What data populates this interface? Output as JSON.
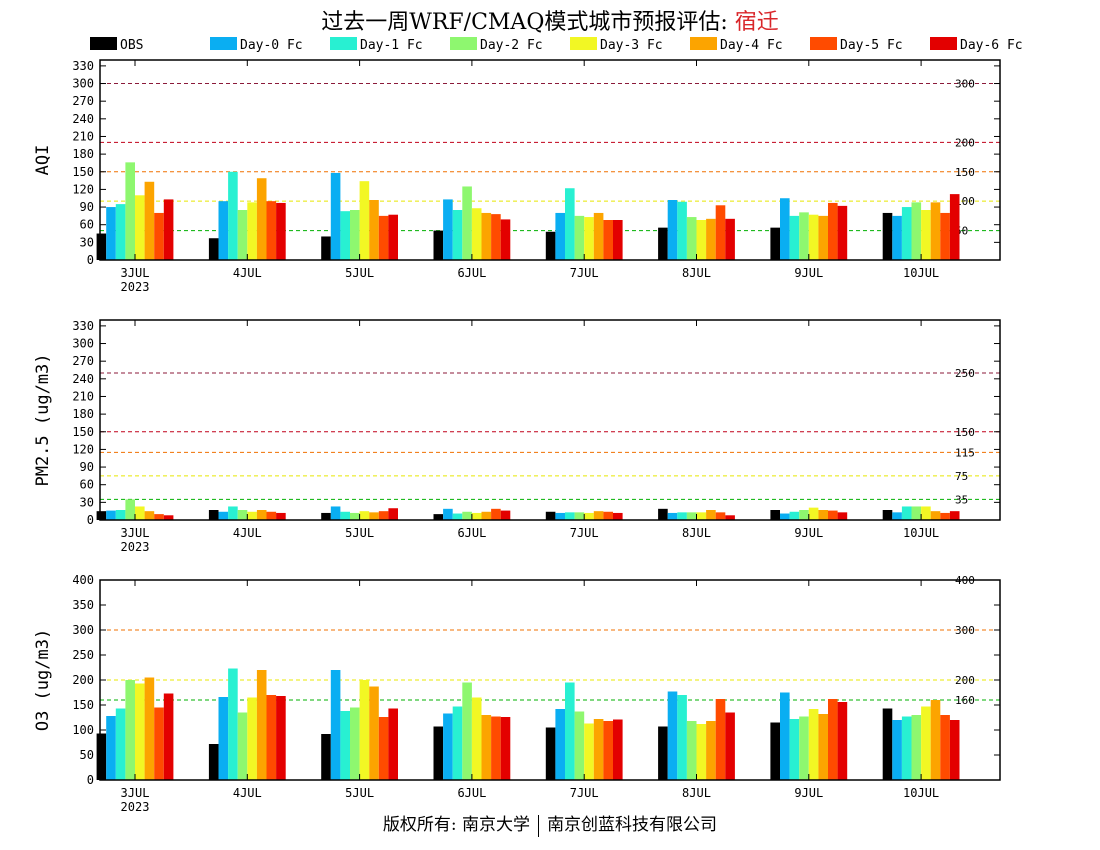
{
  "page": {
    "title_prefix": "过去一周WRF/CMAQ模式城市预报评估: ",
    "title_city": "宿迁",
    "footer_left": "版权所有: 南京大学",
    "footer_right": "南京创蓝科技有限公司"
  },
  "legend": [
    {
      "name": "OBS",
      "color": "#000000"
    },
    {
      "name": "Day-0 Fc",
      "color": "#0aaef2"
    },
    {
      "name": "Day-1 Fc",
      "color": "#28f0d2"
    },
    {
      "name": "Day-2 Fc",
      "color": "#8ef76f"
    },
    {
      "name": "Day-3 Fc",
      "color": "#f2f724"
    },
    {
      "name": "Day-4 Fc",
      "color": "#fca400"
    },
    {
      "name": "Day-5 Fc",
      "color": "#ff4b00"
    },
    {
      "name": "Day-6 Fc",
      "color": "#e30000"
    }
  ],
  "chart_data": [
    {
      "type": "bar",
      "ylabel": "AQI",
      "ylim": [
        0,
        340
      ],
      "yticks": [
        0,
        30,
        60,
        90,
        120,
        150,
        180,
        210,
        240,
        270,
        300,
        330
      ],
      "categories": [
        "3JUL",
        "4JUL",
        "5JUL",
        "6JUL",
        "7JUL",
        "8JUL",
        "9JUL",
        "10JUL"
      ],
      "year_label": "2023",
      "reference_lines": [
        {
          "value": 300,
          "label": "300",
          "color": "#8b1a3a"
        },
        {
          "value": 200,
          "label": "200",
          "color": "#c0001a"
        },
        {
          "value": 150,
          "label": "150",
          "color": "#f07000"
        },
        {
          "value": 100,
          "label": "100",
          "color": "#e8e800"
        },
        {
          "value": 50,
          "label": "50",
          "color": "#00b000"
        }
      ],
      "series": [
        {
          "name": "OBS",
          "values": [
            45,
            37,
            40,
            50,
            48,
            55,
            55,
            80
          ]
        },
        {
          "name": "Day-0 Fc",
          "values": [
            90,
            100,
            148,
            103,
            80,
            102,
            105,
            75
          ]
        },
        {
          "name": "Day-1 Fc",
          "values": [
            95,
            150,
            83,
            85,
            122,
            99,
            75,
            90
          ]
        },
        {
          "name": "Day-2 Fc",
          "values": [
            166,
            85,
            85,
            125,
            75,
            73,
            81,
            98
          ]
        },
        {
          "name": "Day-3 Fc",
          "values": [
            110,
            98,
            134,
            88,
            73,
            68,
            77,
            85
          ]
        },
        {
          "name": "Day-4 Fc",
          "values": [
            133,
            139,
            102,
            80,
            80,
            70,
            75,
            98
          ]
        },
        {
          "name": "Day-5 Fc",
          "values": [
            80,
            100,
            75,
            78,
            68,
            93,
            97,
            80
          ]
        },
        {
          "name": "Day-6 Fc",
          "values": [
            103,
            97,
            77,
            69,
            68,
            70,
            92,
            112
          ]
        }
      ]
    },
    {
      "type": "bar",
      "ylabel": "PM2.5 (ug/m3)",
      "ylim": [
        0,
        340
      ],
      "yticks": [
        0,
        30,
        60,
        90,
        120,
        150,
        180,
        210,
        240,
        270,
        300,
        330
      ],
      "categories": [
        "3JUL",
        "4JUL",
        "5JUL",
        "6JUL",
        "7JUL",
        "8JUL",
        "9JUL",
        "10JUL"
      ],
      "year_label": "2023",
      "reference_lines": [
        {
          "value": 250,
          "label": "250",
          "color": "#8b1a3a"
        },
        {
          "value": 150,
          "label": "150",
          "color": "#c0001a"
        },
        {
          "value": 115,
          "label": "115",
          "color": "#f07000"
        },
        {
          "value": 75,
          "label": "75",
          "color": "#e8e800"
        },
        {
          "value": 35,
          "label": "35",
          "color": "#00b000"
        }
      ],
      "series": [
        {
          "name": "OBS",
          "values": [
            15,
            17,
            12,
            10,
            14,
            19,
            17,
            17
          ]
        },
        {
          "name": "Day-0 Fc",
          "values": [
            16,
            14,
            23,
            19,
            12,
            12,
            11,
            13
          ]
        },
        {
          "name": "Day-1 Fc",
          "values": [
            17,
            23,
            14,
            11,
            13,
            13,
            14,
            23
          ]
        },
        {
          "name": "Day-2 Fc",
          "values": [
            35,
            17,
            12,
            14,
            13,
            13,
            17,
            23
          ]
        },
        {
          "name": "Day-3 Fc",
          "values": [
            23,
            14,
            15,
            12,
            12,
            13,
            21,
            23
          ]
        },
        {
          "name": "Day-4 Fc",
          "values": [
            15,
            17,
            13,
            14,
            15,
            17,
            17,
            15
          ]
        },
        {
          "name": "Day-5 Fc",
          "values": [
            10,
            14,
            15,
            19,
            14,
            13,
            16,
            12
          ]
        },
        {
          "name": "Day-6 Fc",
          "values": [
            8,
            12,
            20,
            16,
            12,
            8,
            13,
            15
          ]
        }
      ]
    },
    {
      "type": "bar",
      "ylabel": "O3 (ug/m3)",
      "ylim": [
        0,
        400
      ],
      "yticks": [
        0,
        50,
        100,
        150,
        200,
        250,
        300,
        350,
        400
      ],
      "categories": [
        "3JUL",
        "4JUL",
        "5JUL",
        "6JUL",
        "7JUL",
        "8JUL",
        "9JUL",
        "10JUL"
      ],
      "year_label": "2023",
      "reference_lines": [
        {
          "value": 400,
          "label": "400",
          "color": "#c0001a"
        },
        {
          "value": 300,
          "label": "300",
          "color": "#f07000"
        },
        {
          "value": 200,
          "label": "200",
          "color": "#e8e800"
        },
        {
          "value": 160,
          "label": "160",
          "color": "#00b000"
        }
      ],
      "series": [
        {
          "name": "OBS",
          "values": [
            93,
            72,
            92,
            107,
            105,
            107,
            115,
            143
          ]
        },
        {
          "name": "Day-0 Fc",
          "values": [
            128,
            166,
            220,
            133,
            142,
            177,
            175,
            120
          ]
        },
        {
          "name": "Day-1 Fc",
          "values": [
            143,
            223,
            138,
            147,
            195,
            170,
            122,
            127
          ]
        },
        {
          "name": "Day-2 Fc",
          "values": [
            200,
            135,
            145,
            195,
            137,
            118,
            127,
            130
          ]
        },
        {
          "name": "Day-3 Fc",
          "values": [
            193,
            165,
            200,
            165,
            113,
            112,
            142,
            147
          ]
        },
        {
          "name": "Day-4 Fc",
          "values": [
            205,
            220,
            187,
            130,
            122,
            118,
            132,
            160
          ]
        },
        {
          "name": "Day-5 Fc",
          "values": [
            145,
            170,
            126,
            127,
            118,
            162,
            162,
            130
          ]
        },
        {
          "name": "Day-6 Fc",
          "values": [
            173,
            168,
            143,
            126,
            121,
            135,
            156,
            120
          ]
        }
      ]
    }
  ]
}
